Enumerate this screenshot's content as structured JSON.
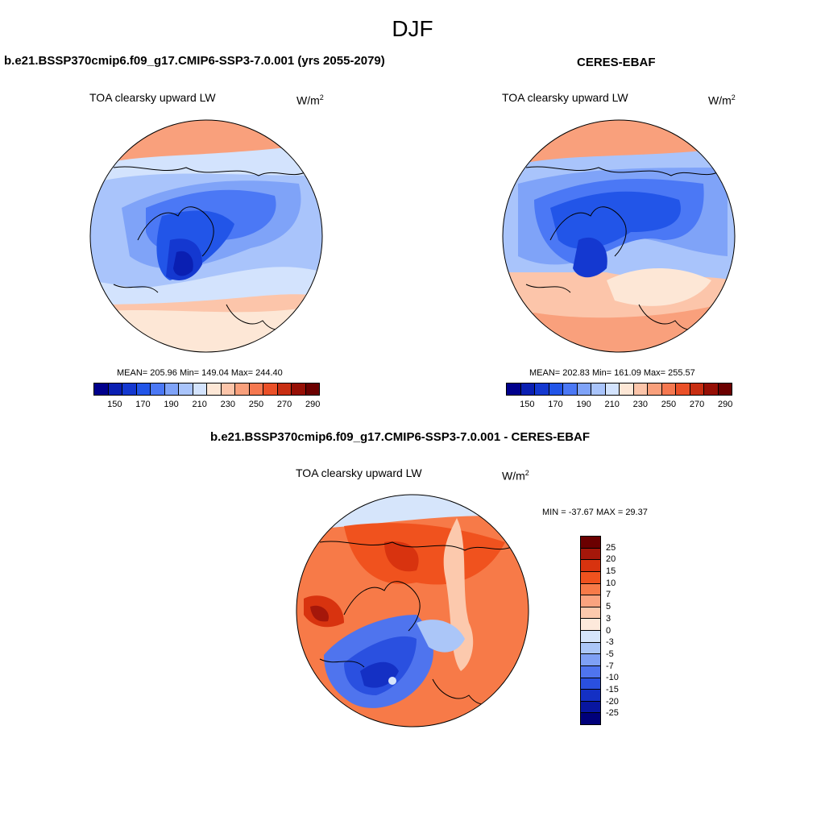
{
  "season": "DJF",
  "panels": {
    "model": {
      "title": "b.e21.BSSP370cmip6.f09_g17.CMIP6-SSP3-7.0.001 (yrs 2055-2079)",
      "variable": "TOA clearsky upward LW",
      "units": "W/m",
      "units_sup": "2",
      "stats": "MEAN= 205.96  Min= 149.04  Max= 244.40"
    },
    "obs": {
      "title": "CERES-EBAF",
      "variable": "TOA clearsky upward LW",
      "units": "W/m",
      "units_sup": "2",
      "stats": "MEAN= 202.83  Min= 161.09  Max= 255.57"
    },
    "diff": {
      "title": "b.e21.BSSP370cmip6.f09_g17.CMIP6-SSP3-7.0.001 - CERES-EBAF",
      "variable": "TOA clearsky upward LW",
      "units": "W/m",
      "units_sup": "2",
      "stats": "MIN = -37.67 MAX =  29.37"
    }
  },
  "colorbar_abs": {
    "colors": [
      "#00008c",
      "#0a1fb2",
      "#1438d0",
      "#2255e8",
      "#4b78f5",
      "#7fa3f8",
      "#a9c4fb",
      "#d3e3fd",
      "#fde7d6",
      "#fcc5aa",
      "#f9a07c",
      "#f57850",
      "#ea5028",
      "#c82e12",
      "#960f05",
      "#6b0000"
    ],
    "tick_labels": [
      "150",
      "170",
      "190",
      "210",
      "230",
      "250",
      "270",
      "290"
    ]
  },
  "colorbar_diff": {
    "colors": [
      "#6b0000",
      "#a5170a",
      "#d8330f",
      "#f0521e",
      "#f77a48",
      "#faa37f",
      "#fcc9ad",
      "#fde9db",
      "#d6e5fb",
      "#abc6f8",
      "#7fa0f5",
      "#4f74ee",
      "#2a50e0",
      "#1430c4",
      "#0816a0",
      "#00007a"
    ],
    "tick_labels": [
      "25",
      "20",
      "15",
      "10",
      "7",
      "5",
      "3",
      "0",
      "-3",
      "-5",
      "-7",
      "-10",
      "-15",
      "-20",
      "-25"
    ]
  },
  "chart_data": [
    {
      "type": "heatmap",
      "title": "b.e21.BSSP370cmip6.f09_g17.CMIP6-SSP3-7.0.001 (yrs 2055-2079)",
      "projection": "north polar stereographic",
      "variable": "TOA clearsky upward LW",
      "units": "W/m2",
      "mean": 205.96,
      "min": 149.04,
      "max": 244.4,
      "contour_levels": [
        150,
        160,
        170,
        180,
        190,
        200,
        210,
        220,
        230,
        240,
        250,
        260,
        270,
        280,
        290
      ]
    },
    {
      "type": "heatmap",
      "title": "CERES-EBAF",
      "projection": "north polar stereographic",
      "variable": "TOA clearsky upward LW",
      "units": "W/m2",
      "mean": 202.83,
      "min": 161.09,
      "max": 255.57,
      "contour_levels": [
        150,
        160,
        170,
        180,
        190,
        200,
        210,
        220,
        230,
        240,
        250,
        260,
        270,
        280,
        290
      ]
    },
    {
      "type": "heatmap",
      "title": "b.e21.BSSP370cmip6.f09_g17.CMIP6-SSP3-7.0.001 - CERES-EBAF",
      "projection": "north polar stereographic",
      "variable": "TOA clearsky upward LW",
      "units": "W/m2",
      "min": -37.67,
      "max": 29.37,
      "contour_levels": [
        -25,
        -20,
        -15,
        -10,
        -7,
        -5,
        -3,
        0,
        3,
        5,
        7,
        10,
        15,
        20,
        25
      ]
    }
  ]
}
